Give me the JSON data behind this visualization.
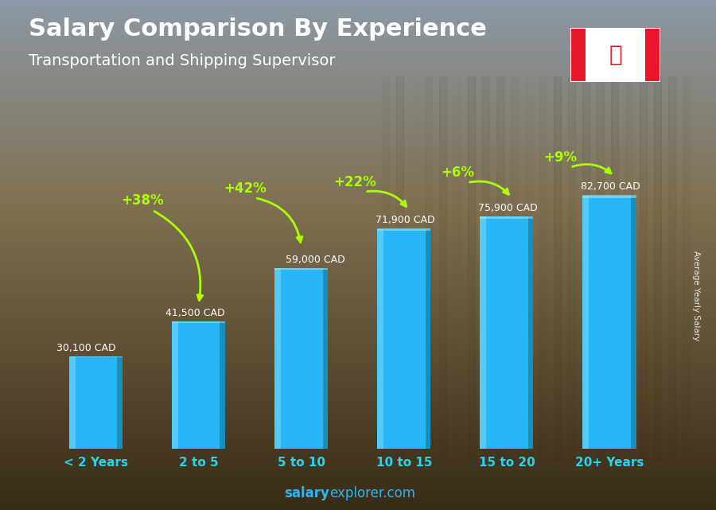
{
  "title": "Salary Comparison By Experience",
  "subtitle": "Transportation and Shipping Supervisor",
  "categories": [
    "< 2 Years",
    "2 to 5",
    "5 to 10",
    "10 to 15",
    "15 to 20",
    "20+ Years"
  ],
  "values": [
    30100,
    41500,
    59000,
    71900,
    75900,
    82700
  ],
  "value_labels": [
    "30,100 CAD",
    "41,500 CAD",
    "59,000 CAD",
    "71,900 CAD",
    "75,900 CAD",
    "82,700 CAD"
  ],
  "pct_labels": [
    "+38%",
    "+42%",
    "+22%",
    "+6%",
    "+9%"
  ],
  "bar_color": "#29b6f6",
  "bar_highlight": "#6dd5f8",
  "bar_shadow": "#1a8db8",
  "pct_color": "#aaff00",
  "value_label_color": "#ffffff",
  "title_color": "#ffffff",
  "subtitle_color": "#ffffff",
  "bg_top_color": "#8a9aaa",
  "bg_mid_color": "#7a6a50",
  "bg_bot_color": "#3a2a10",
  "ylabel": "Average Yearly Salary",
  "footer_bold": "salary",
  "footer_normal": "explorer.com",
  "ylim": [
    0,
    100000
  ],
  "bar_width": 0.52,
  "footer_color": "#29b6f6"
}
